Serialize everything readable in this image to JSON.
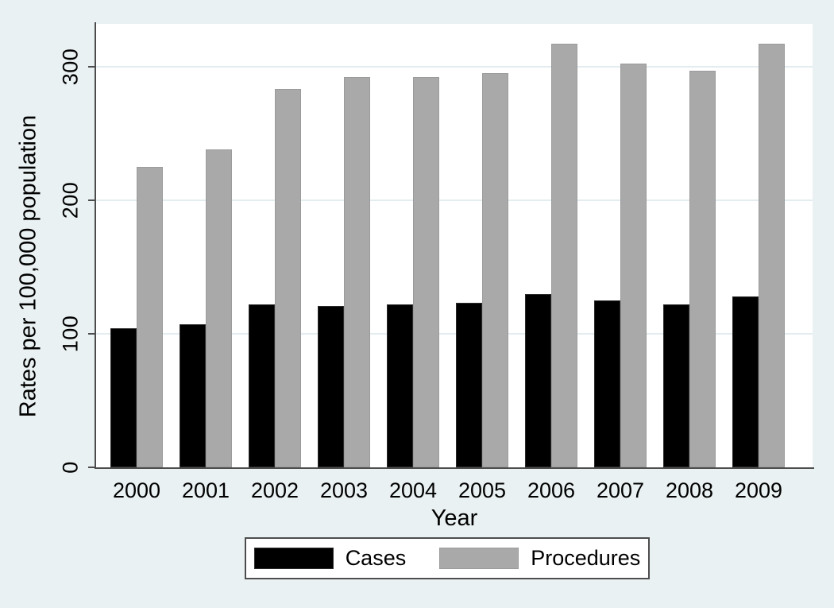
{
  "figure": {
    "background_color": "#eaf1f2",
    "plot_background_color": "#ffffff",
    "gridline_color": "#e3edf0",
    "axis_color": "#4d4d4d"
  },
  "chart_data": {
    "type": "bar",
    "title": "",
    "xlabel": "Year",
    "ylabel": "Rates per 100,000 population",
    "categories": [
      "2000",
      "2001",
      "2002",
      "2003",
      "2004",
      "2005",
      "2006",
      "2007",
      "2008",
      "2009"
    ],
    "series": [
      {
        "name": "Cases",
        "color": "#000000",
        "border_color": "#2b2b2b",
        "values": [
          104,
          107,
          122,
          121,
          122,
          123,
          130,
          125,
          122,
          128
        ]
      },
      {
        "name": "Procedures",
        "color": "#a9a9a9",
        "border_color": "#9b9b9b",
        "values": [
          225,
          238,
          283,
          292,
          292,
          295,
          317,
          302,
          297,
          317
        ]
      }
    ],
    "ylim": [
      0,
      332
    ],
    "yticks": [
      0,
      100,
      200,
      300
    ],
    "grid": true,
    "legend_position": "bottom-center"
  }
}
